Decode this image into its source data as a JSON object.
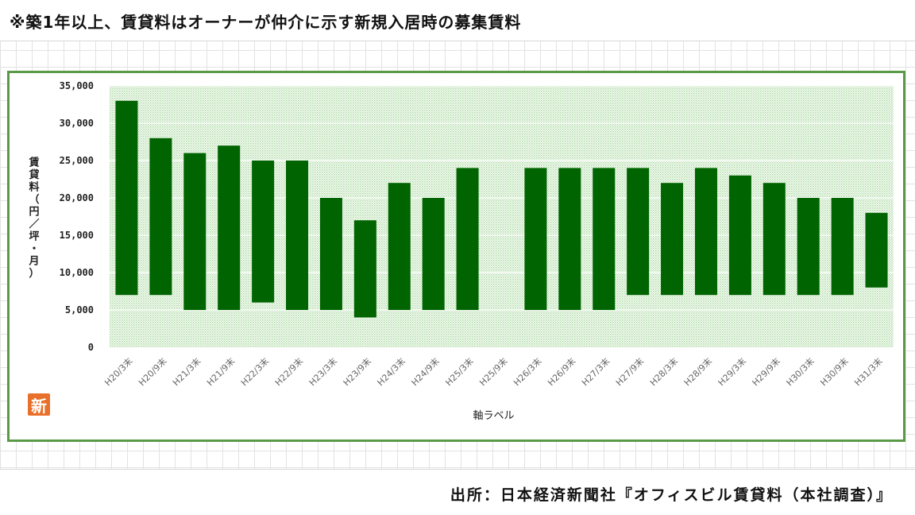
{
  "page": {
    "title": "※築1年以上、賃貸料はオーナーが仲介に示す新規入居時の募集賃料",
    "source": "出所：日本経済新聞社『オフィスビル賃貸料（本社調査）』",
    "logo_text": "新",
    "colors": {
      "bar": "#006400",
      "frame": "#5a9a46",
      "plot_dots": "#a8d7a0"
    }
  },
  "chart_data": {
    "type": "bar",
    "subtype": "floating-range",
    "xlabel": "軸ラベル",
    "ylabel": "賃貸料（円／坪・月）",
    "ylim": [
      0,
      35000
    ],
    "yticks": [
      0,
      5000,
      10000,
      15000,
      20000,
      25000,
      30000,
      35000
    ],
    "ytick_labels": [
      "0",
      "5,000",
      "10,000",
      "15,000",
      "20,000",
      "25,000",
      "30,000",
      "35,000"
    ],
    "grid": true,
    "categories": [
      "H20/3末",
      "H20/9末",
      "H21/3末",
      "H21/9末",
      "H22/3末",
      "H22/9末",
      "H23/3末",
      "H23/9末",
      "H24/3末",
      "H24/9末",
      "H25/3末",
      "H25/9末",
      "H26/3末",
      "H26/9末",
      "H27/3末",
      "H27/9末",
      "H28/3末",
      "H28/9末",
      "H29/3末",
      "H29/9末",
      "H30/3末",
      "H30/9末",
      "H31/3末"
    ],
    "series": [
      {
        "low": [
          7000,
          7000,
          5000,
          5000,
          6000,
          5000,
          5000,
          4000,
          5000,
          5000,
          5000,
          null,
          5000,
          5000,
          5000,
          7000,
          7000,
          7000,
          7000,
          7000,
          7000,
          7000,
          8000
        ],
        "high": [
          33000,
          28000,
          26000,
          27000,
          25000,
          25000,
          20000,
          17000,
          22000,
          20000,
          24000,
          null,
          24000,
          24000,
          24000,
          24000,
          22000,
          24000,
          23000,
          22000,
          20000,
          20000,
          18000
        ]
      }
    ]
  }
}
